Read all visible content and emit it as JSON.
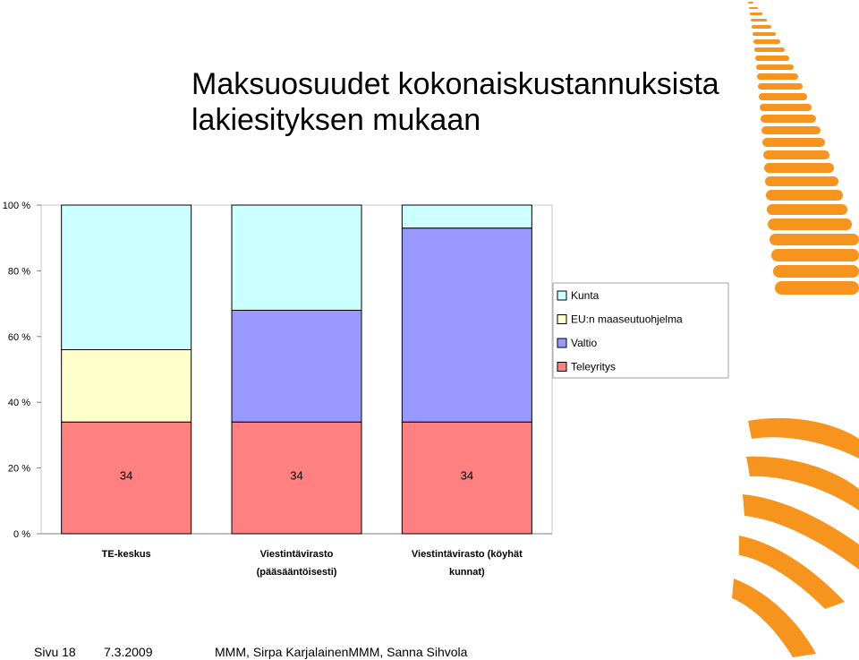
{
  "slide": {
    "title_line1": "Maksuosuudet kokonaiskustannuksista",
    "title_line2": "lakiesityksen mukaan"
  },
  "footer": {
    "page": "Sivu 18",
    "date": "7.3.2009",
    "authors": "MMM, Sirpa KarjalainenMMM, Sanna Sihvola"
  },
  "colors": {
    "Teleyritys": "#ff8080",
    "Valtio": "#9999ff",
    "EU:n maaseutuohjelma": "#ffffcc",
    "Kunta": "#ccffff",
    "accent_orange": "#f7941d"
  },
  "chart_data": {
    "type": "bar",
    "stacked": true,
    "percent_stacked": true,
    "categories": [
      [
        "TE-keskus"
      ],
      [
        "Viestintävirasto",
        "(pääsääntöisesti)"
      ],
      [
        "Viestintävirasto (köyhät",
        "kunnat)"
      ]
    ],
    "series": [
      {
        "name": "Teleyritys",
        "values": [
          34,
          34,
          34
        ],
        "data_labels": [
          "34",
          "34",
          "34"
        ]
      },
      {
        "name": "Valtio",
        "values": [
          0,
          34,
          59
        ]
      },
      {
        "name": "EU:n maaseutuohjelma",
        "values": [
          22,
          0,
          0
        ]
      },
      {
        "name": "Kunta",
        "values": [
          44,
          32,
          7
        ]
      }
    ],
    "ylim": [
      0,
      100
    ],
    "y_ticks": [
      "0 %",
      "20 %",
      "40 %",
      "60 %",
      "80 %",
      "100 %"
    ],
    "grid": false,
    "legend": {
      "placement": "right",
      "entries": [
        "Kunta",
        "EU:n maaseutuohjelma",
        "Valtio",
        "Teleyritys"
      ]
    }
  }
}
